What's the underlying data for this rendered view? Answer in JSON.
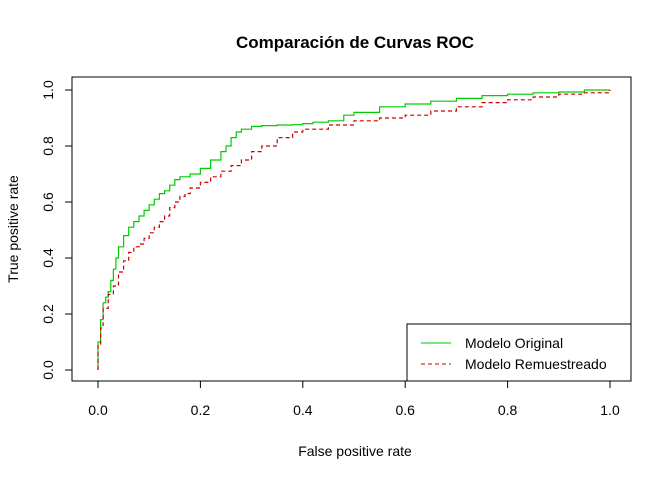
{
  "chart_data": {
    "type": "line",
    "title": "Comparación de Curvas ROC",
    "xlabel": "False positive rate",
    "ylabel": "True positive rate",
    "xlim": [
      0,
      1
    ],
    "ylim": [
      0,
      1
    ],
    "x_ticks": [
      "0.0",
      "0.2",
      "0.4",
      "0.6",
      "0.8",
      "1.0"
    ],
    "y_ticks": [
      "0.0",
      "0.2",
      "0.4",
      "0.6",
      "0.8",
      "1.0"
    ],
    "grid": false,
    "legend_position": "bottom-right",
    "series": [
      {
        "name": "Modelo Original",
        "color": "#00cc00",
        "line_style": "solid",
        "x": [
          0,
          0,
          0.005,
          0.01,
          0.015,
          0.02,
          0.025,
          0.03,
          0.035,
          0.04,
          0.05,
          0.06,
          0.07,
          0.08,
          0.09,
          0.1,
          0.11,
          0.12,
          0.13,
          0.14,
          0.15,
          0.16,
          0.17,
          0.18,
          0.2,
          0.22,
          0.24,
          0.25,
          0.26,
          0.27,
          0.28,
          0.3,
          0.32,
          0.35,
          0.38,
          0.4,
          0.42,
          0.45,
          0.48,
          0.5,
          0.55,
          0.6,
          0.65,
          0.7,
          0.75,
          0.8,
          0.85,
          0.9,
          0.95,
          1.0
        ],
        "y": [
          0,
          0.1,
          0.18,
          0.24,
          0.26,
          0.28,
          0.32,
          0.36,
          0.4,
          0.44,
          0.48,
          0.51,
          0.53,
          0.55,
          0.57,
          0.59,
          0.61,
          0.63,
          0.64,
          0.66,
          0.68,
          0.69,
          0.69,
          0.7,
          0.72,
          0.75,
          0.78,
          0.8,
          0.83,
          0.85,
          0.86,
          0.87,
          0.873,
          0.875,
          0.876,
          0.88,
          0.885,
          0.89,
          0.91,
          0.92,
          0.94,
          0.95,
          0.96,
          0.97,
          0.98,
          0.985,
          0.99,
          0.993,
          1.0,
          1.0
        ]
      },
      {
        "name": "Modelo Remuestreado",
        "color": "#cc0000",
        "line_style": "dashed",
        "x": [
          0,
          0,
          0.005,
          0.01,
          0.02,
          0.03,
          0.04,
          0.05,
          0.06,
          0.07,
          0.08,
          0.09,
          0.1,
          0.11,
          0.12,
          0.13,
          0.14,
          0.15,
          0.16,
          0.17,
          0.18,
          0.2,
          0.22,
          0.24,
          0.26,
          0.28,
          0.3,
          0.32,
          0.35,
          0.38,
          0.4,
          0.45,
          0.5,
          0.55,
          0.6,
          0.65,
          0.7,
          0.75,
          0.8,
          0.85,
          0.9,
          0.95,
          1.0
        ],
        "y": [
          0,
          0.09,
          0.15,
          0.22,
          0.27,
          0.3,
          0.35,
          0.39,
          0.42,
          0.44,
          0.45,
          0.47,
          0.49,
          0.51,
          0.53,
          0.55,
          0.58,
          0.6,
          0.62,
          0.63,
          0.65,
          0.67,
          0.69,
          0.71,
          0.73,
          0.75,
          0.78,
          0.8,
          0.83,
          0.85,
          0.86,
          0.875,
          0.89,
          0.9,
          0.91,
          0.925,
          0.94,
          0.955,
          0.965,
          0.975,
          0.985,
          0.99,
          1.0
        ]
      }
    ]
  }
}
